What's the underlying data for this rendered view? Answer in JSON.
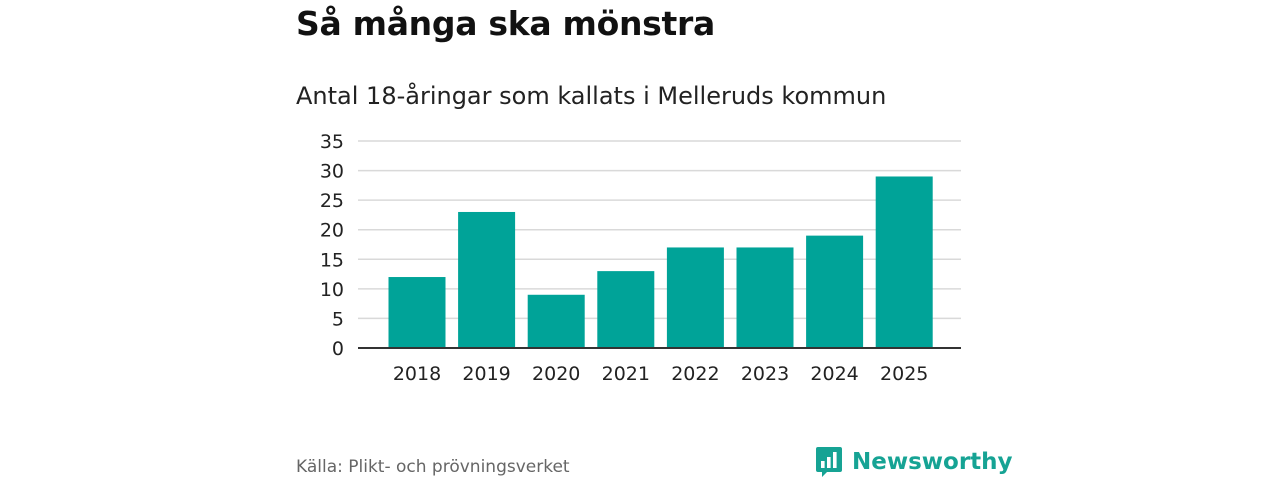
{
  "header": {
    "title": "Så många ska mönstra",
    "subtitle": "Antal 18-åringar som kallats i Melleruds kommun"
  },
  "chart_data": {
    "type": "bar",
    "title": "Så många ska mönstra",
    "subtitle": "Antal 18-åringar som kallats i Melleruds kommun",
    "categories": [
      "2018",
      "2019",
      "2020",
      "2021",
      "2022",
      "2023",
      "2024",
      "2025"
    ],
    "values": [
      12,
      23,
      9,
      13,
      17,
      17,
      19,
      29
    ],
    "ylim": [
      0,
      35
    ],
    "yticks": [
      0,
      5,
      10,
      15,
      20,
      25,
      30,
      35
    ],
    "xlabel": "",
    "ylabel": "",
    "grid": true,
    "bar_color": "#00a398"
  },
  "footer": {
    "source": "Källa: Plikt- och prövningsverket",
    "brand": "Newsworthy",
    "brand_icon": "newsworthy-logo-icon",
    "brand_color": "#16a394"
  }
}
